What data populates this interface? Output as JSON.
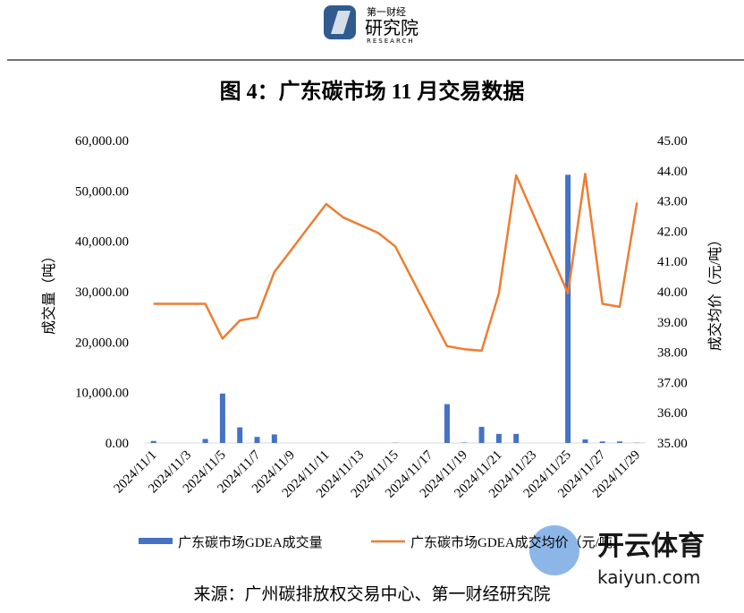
{
  "header": {
    "logo_top": "第一财经",
    "logo_main": "研究院",
    "logo_sub": "RESEARCH"
  },
  "chart_data": {
    "type": "bar-line",
    "title": "图 4：广东碳市场 11 月交易数据",
    "categories": [
      "2024/11/1",
      null,
      "2024/11/3",
      null,
      "2024/11/5",
      null,
      "2024/11/7",
      null,
      "2024/11/9",
      null,
      "2024/11/11",
      null,
      "2024/11/13",
      null,
      "2024/11/15",
      null,
      "2024/11/17",
      null,
      "2024/11/19",
      null,
      "2024/11/21",
      null,
      "2024/11/23",
      null,
      "2024/11/25",
      null,
      "2024/11/27",
      null,
      "2024/11/29"
    ],
    "series": [
      {
        "name": "广东碳市场GDEA成交量",
        "color": "#4472c4",
        "type": "bar",
        "axis": "y",
        "values": [
          400,
          0,
          0,
          800,
          9800,
          3100,
          1200,
          1700,
          0,
          0,
          0,
          0,
          0,
          0,
          50,
          0,
          0,
          7700,
          100,
          3200,
          1800,
          1800,
          0,
          0,
          53200,
          700,
          300,
          300,
          50
        ]
      },
      {
        "name": "广东碳市场GDEA成交均价（元/吨）",
        "color": "#ed7d31",
        "type": "line",
        "axis": "y2",
        "values": [
          39.6,
          39.6,
          39.6,
          39.6,
          38.45,
          39.05,
          39.15,
          40.65,
          41.4,
          42.15,
          42.9,
          42.45,
          42.2,
          41.95,
          41.5,
          40.4,
          39.3,
          38.2,
          38.1,
          38.05,
          39.95,
          43.85,
          42.55,
          41.25,
          39.95,
          43.9,
          39.6,
          39.5,
          42.95
        ]
      }
    ],
    "y_label": "成交量（吨）",
    "y2_label": "成交均价（元/吨）",
    "ylim": [
      0,
      60000
    ],
    "yticks": [
      {
        "value": 0,
        "label": "0.00"
      },
      {
        "value": 10000,
        "label": "10,000.00"
      },
      {
        "value": 20000,
        "label": "20,000.00"
      },
      {
        "value": 30000,
        "label": "30,000.00"
      },
      {
        "value": 40000,
        "label": "40,000.00"
      },
      {
        "value": 50000,
        "label": "50,000.00"
      },
      {
        "value": 60000,
        "label": "60,000.00"
      }
    ],
    "y2lim": [
      35,
      45
    ],
    "y2ticks": [
      {
        "value": 35,
        "label": "35.00"
      },
      {
        "value": 36,
        "label": "36.00"
      },
      {
        "value": 37,
        "label": "37.00"
      },
      {
        "value": 38,
        "label": "38.00"
      },
      {
        "value": 39,
        "label": "39.00"
      },
      {
        "value": 40,
        "label": "40.00"
      },
      {
        "value": 41,
        "label": "41.00"
      },
      {
        "value": 42,
        "label": "42.00"
      },
      {
        "value": 43,
        "label": "43.00"
      },
      {
        "value": 44,
        "label": "44.00"
      },
      {
        "value": 45,
        "label": "45.00"
      }
    ],
    "legend": "bottom",
    "grid": false,
    "source": "来源：广州碳排放权交易中心、第一财经研究院"
  },
  "watermark": {
    "brand": "开云体育",
    "site": "kaiyun.com"
  }
}
